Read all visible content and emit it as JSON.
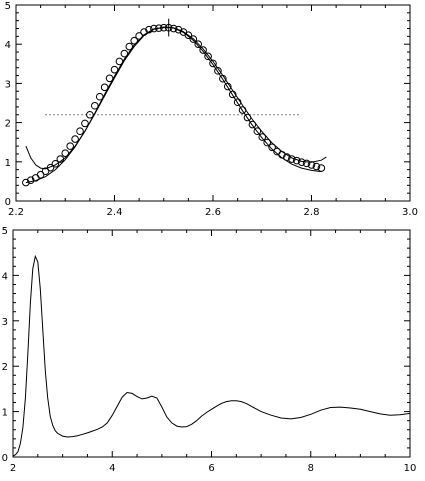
{
  "chart_data": [
    {
      "type": "scatter",
      "title": "",
      "xlabel": "",
      "ylabel": "",
      "xlim": [
        2.2,
        3.0
      ],
      "ylim": [
        0,
        5
      ],
      "x_ticks": [
        "2.2",
        "2.4",
        "2.6",
        "2.8",
        "3.0"
      ],
      "y_ticks": [
        "0",
        "1",
        "2",
        "3",
        "4",
        "5"
      ],
      "grid": false,
      "series": [
        {
          "kind": "markers",
          "marker": "open-circle",
          "x": [
            2.22,
            2.23,
            2.24,
            2.25,
            2.26,
            2.27,
            2.28,
            2.29,
            2.3,
            2.31,
            2.32,
            2.33,
            2.34,
            2.35,
            2.36,
            2.37,
            2.38,
            2.39,
            2.4,
            2.41,
            2.42,
            2.43,
            2.44,
            2.45,
            2.46,
            2.47,
            2.48,
            2.49,
            2.5,
            2.51,
            2.52,
            2.53,
            2.54,
            2.55,
            2.56,
            2.57,
            2.58,
            2.59,
            2.6,
            2.61,
            2.62,
            2.63,
            2.64,
            2.65,
            2.66,
            2.67,
            2.68,
            2.69,
            2.7,
            2.71,
            2.72,
            2.73,
            2.74,
            2.75,
            2.76,
            2.77,
            2.78,
            2.79,
            2.8,
            2.81,
            2.82
          ],
          "y": [
            0.47,
            0.53,
            0.59,
            0.67,
            0.76,
            0.85,
            0.95,
            1.07,
            1.22,
            1.4,
            1.58,
            1.78,
            1.98,
            2.2,
            2.43,
            2.66,
            2.9,
            3.13,
            3.35,
            3.56,
            3.76,
            3.94,
            4.09,
            4.21,
            4.31,
            4.37,
            4.4,
            4.41,
            4.42,
            4.42,
            4.4,
            4.37,
            4.31,
            4.23,
            4.13,
            4.0,
            3.85,
            3.69,
            3.51,
            3.32,
            3.12,
            2.92,
            2.72,
            2.52,
            2.32,
            2.13,
            1.95,
            1.78,
            1.63,
            1.49,
            1.37,
            1.26,
            1.18,
            1.12,
            1.07,
            1.03,
            0.99,
            0.96,
            0.92,
            0.88,
            0.84
          ]
        },
        {
          "kind": "line",
          "x": [
            2.22,
            2.24,
            2.26,
            2.28,
            2.3,
            2.32,
            2.34,
            2.36,
            2.38,
            2.4,
            2.42,
            2.44,
            2.46,
            2.48,
            2.5,
            2.51,
            2.52,
            2.54,
            2.56,
            2.58,
            2.6,
            2.62,
            2.64,
            2.66,
            2.68,
            2.7,
            2.72,
            2.74,
            2.76,
            2.78,
            2.8,
            2.82
          ],
          "y": [
            0.47,
            0.52,
            0.62,
            0.8,
            1.05,
            1.38,
            1.78,
            2.24,
            2.72,
            3.18,
            3.62,
            3.98,
            4.24,
            4.39,
            4.42,
            4.43,
            4.41,
            4.3,
            4.1,
            3.82,
            3.48,
            3.1,
            2.7,
            2.3,
            1.93,
            1.6,
            1.32,
            1.1,
            0.94,
            0.84,
            0.78,
            0.75
          ]
        },
        {
          "kind": "line",
          "x": [
            2.22,
            2.23,
            2.24,
            2.25,
            2.26,
            2.28,
            2.3,
            2.32,
            2.34,
            2.36,
            2.38,
            2.4,
            2.42,
            2.44,
            2.46,
            2.48,
            2.5,
            2.52,
            2.54,
            2.56,
            2.58,
            2.6,
            2.62,
            2.64,
            2.66,
            2.68,
            2.7,
            2.72,
            2.74,
            2.76,
            2.78,
            2.8,
            2.82,
            2.83
          ],
          "y": [
            1.4,
            1.1,
            0.92,
            0.84,
            0.82,
            0.92,
            1.1,
            1.4,
            1.78,
            2.22,
            2.68,
            3.14,
            3.58,
            3.94,
            4.22,
            4.38,
            4.44,
            4.42,
            4.32,
            4.14,
            3.88,
            3.56,
            3.2,
            2.82,
            2.44,
            2.08,
            1.76,
            1.48,
            1.26,
            1.1,
            1.01,
            0.99,
            1.04,
            1.12
          ]
        },
        {
          "kind": "dotted-line",
          "x": [
            2.26,
            2.78
          ],
          "y": [
            2.2,
            2.2
          ]
        },
        {
          "kind": "vertical-tick",
          "x": [
            2.51,
            2.51
          ],
          "y": [
            4.2,
            4.65
          ]
        }
      ]
    },
    {
      "type": "line",
      "title": "",
      "xlabel": "",
      "ylabel": "",
      "xlim": [
        2,
        10
      ],
      "ylim": [
        0,
        5
      ],
      "x_ticks": [
        "2",
        "4",
        "6",
        "8",
        "10"
      ],
      "y_ticks": [
        "0",
        "1",
        "2",
        "3",
        "4",
        "5"
      ],
      "grid": false,
      "series": [
        {
          "kind": "line",
          "x": [
            2.0,
            2.05,
            2.1,
            2.15,
            2.2,
            2.25,
            2.3,
            2.35,
            2.4,
            2.45,
            2.5,
            2.55,
            2.6,
            2.65,
            2.7,
            2.75,
            2.8,
            2.85,
            2.9,
            3.0,
            3.1,
            3.2,
            3.3,
            3.4,
            3.5,
            3.6,
            3.7,
            3.8,
            3.9,
            4.0,
            4.1,
            4.2,
            4.3,
            4.4,
            4.5,
            4.6,
            4.7,
            4.8,
            4.9,
            5.0,
            5.1,
            5.2,
            5.3,
            5.4,
            5.5,
            5.6,
            5.7,
            5.8,
            5.9,
            6.0,
            6.1,
            6.2,
            6.3,
            6.4,
            6.5,
            6.6,
            6.7,
            6.8,
            6.9,
            7.0,
            7.2,
            7.4,
            7.6,
            7.8,
            8.0,
            8.2,
            8.4,
            8.6,
            8.8,
            9.0,
            9.2,
            9.4,
            9.6,
            9.8,
            10.0
          ],
          "y": [
            0.02,
            0.05,
            0.12,
            0.3,
            0.65,
            1.3,
            2.3,
            3.4,
            4.15,
            4.42,
            4.3,
            3.7,
            2.8,
            1.9,
            1.3,
            0.9,
            0.7,
            0.58,
            0.52,
            0.46,
            0.44,
            0.45,
            0.47,
            0.5,
            0.53,
            0.57,
            0.61,
            0.66,
            0.75,
            0.92,
            1.12,
            1.32,
            1.42,
            1.4,
            1.33,
            1.28,
            1.3,
            1.34,
            1.3,
            1.1,
            0.88,
            0.75,
            0.68,
            0.66,
            0.67,
            0.72,
            0.8,
            0.9,
            0.98,
            1.05,
            1.12,
            1.18,
            1.22,
            1.24,
            1.24,
            1.22,
            1.18,
            1.12,
            1.06,
            1.0,
            0.92,
            0.86,
            0.84,
            0.87,
            0.94,
            1.03,
            1.09,
            1.1,
            1.08,
            1.05,
            1.0,
            0.95,
            0.92,
            0.93,
            0.96
          ]
        }
      ]
    }
  ]
}
